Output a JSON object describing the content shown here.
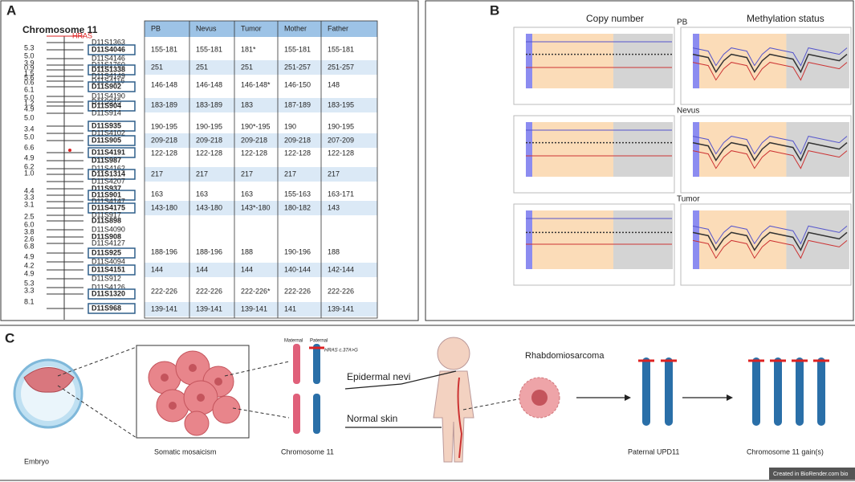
{
  "panel_a": {
    "label": "A",
    "title": "Chromosome 11",
    "markers": [
      {
        "name": "HRAS",
        "style": "red"
      },
      {
        "name": "D11S1363",
        "style": "plain"
      },
      {
        "name": "D11S4046",
        "style": "boxed"
      },
      {
        "name": "D11S4146",
        "style": "plain"
      },
      {
        "name": "D11S1760",
        "style": "plain"
      },
      {
        "name": "D11S1338",
        "style": "boxed"
      },
      {
        "name": "D11S4149",
        "style": "plain"
      },
      {
        "name": "D11S4116",
        "style": "plain"
      },
      {
        "name": "D11S902",
        "style": "boxed"
      },
      {
        "name": "D11S4190",
        "style": "plain"
      },
      {
        "name": "D11S915",
        "style": "plain"
      },
      {
        "name": "D11S904",
        "style": "boxed"
      },
      {
        "name": "D11S914",
        "style": "plain"
      },
      {
        "name": "D11S935",
        "style": "boxed"
      },
      {
        "name": "D11S4102",
        "style": "plain"
      },
      {
        "name": "D11S905",
        "style": "boxed"
      },
      {
        "name": "D11S4191",
        "style": "boxed"
      },
      {
        "name": "D11S987",
        "style": "bold"
      },
      {
        "name": "D11S4162",
        "style": "plain"
      },
      {
        "name": "D11S1314",
        "style": "boxed"
      },
      {
        "name": "D11S4207",
        "style": "plain"
      },
      {
        "name": "D11S937",
        "style": "bold"
      },
      {
        "name": "D11S901",
        "style": "boxed"
      },
      {
        "name": "D11S4147",
        "style": "plain"
      },
      {
        "name": "D11S4175",
        "style": "boxed"
      },
      {
        "name": "D11S917",
        "style": "plain"
      },
      {
        "name": "D11S898",
        "style": "bold"
      },
      {
        "name": "D11S4090",
        "style": "plain"
      },
      {
        "name": "D11S908",
        "style": "bold"
      },
      {
        "name": "D11S4127",
        "style": "plain"
      },
      {
        "name": "D11S925",
        "style": "boxed"
      },
      {
        "name": "D11S4094",
        "style": "plain"
      },
      {
        "name": "D11S4151",
        "style": "boxed"
      },
      {
        "name": "D11S912",
        "style": "plain"
      },
      {
        "name": "D11S4126",
        "style": "plain"
      },
      {
        "name": "D11S1320",
        "style": "boxed"
      },
      {
        "name": "D11S968",
        "style": "boxed"
      }
    ],
    "distances": [
      "5.3",
      "5.0",
      "3.9",
      "0.9",
      "1.5",
      "5.6",
      "0.6",
      "6.1",
      "5.0",
      "1.2",
      "4.9",
      "5.0",
      "3.4",
      "5.0",
      "6.6",
      "4.9",
      "6.2",
      "1.0",
      "4.4",
      "3.3",
      "3.1",
      "2.5",
      "6.0",
      "3.8",
      "2.6",
      "6.8",
      "4.9",
      "4.2",
      "4.9",
      "5.3",
      "3.3",
      "8.1"
    ],
    "table": {
      "header": [
        "PB",
        "Nevus",
        "Tumor",
        "Mother",
        "Father"
      ],
      "rows": [
        [
          "155-181",
          "155-181",
          "181*",
          "155-181",
          "155-181"
        ],
        [
          "251",
          "251",
          "251",
          "251-257",
          "251-257"
        ],
        [
          "146-148",
          "146-148",
          "146-148*",
          "146-150",
          "148"
        ],
        [
          "183-189",
          "183-189",
          "183",
          "187-189",
          "183-195"
        ],
        [
          "190-195",
          "190-195",
          "190*-195",
          "190",
          "190-195"
        ],
        [
          "209-218",
          "209-218",
          "209-218",
          "209-218",
          "207-209"
        ],
        [
          "122-128",
          "122-128",
          "122-128",
          "122-128",
          "122-128"
        ],
        [
          "217",
          "217",
          "217",
          "217",
          "217"
        ],
        [
          "163",
          "163",
          "163",
          "155-163",
          "163-171"
        ],
        [
          "143-180",
          "143-180",
          "143*-180",
          "180-182",
          "143"
        ],
        [
          "188-196",
          "188-196",
          "188",
          "190-196",
          "188"
        ],
        [
          "144",
          "144",
          "144",
          "140-144",
          "142-144"
        ],
        [
          "222-226",
          "222-226",
          "222-226*",
          "222-226",
          "222-226"
        ],
        [
          "139-141",
          "139-141",
          "139-141",
          "141",
          "139-141"
        ]
      ]
    }
  },
  "panel_b": {
    "label": "B",
    "col_titles": [
      "Copy number",
      "Methylation status"
    ],
    "samples": [
      "PB",
      "Nevus",
      "Tumor"
    ]
  },
  "panel_c": {
    "label": "C",
    "embryo": "Embryo",
    "mosaic": "Somatic mosaicism",
    "maternal": "Maternal",
    "paternal": "Paternal",
    "variant": "HRAS c.37A>G",
    "chromosome": "Chromosome 11",
    "nevi": "Epidermal nevi",
    "skin": "Normal skin",
    "tumor": "Rhabdomiosarcoma",
    "upd": "Paternal UPD11",
    "gain": "Chromosome 11 gain(s)",
    "credit": "Created in BioRender.com bio"
  }
}
